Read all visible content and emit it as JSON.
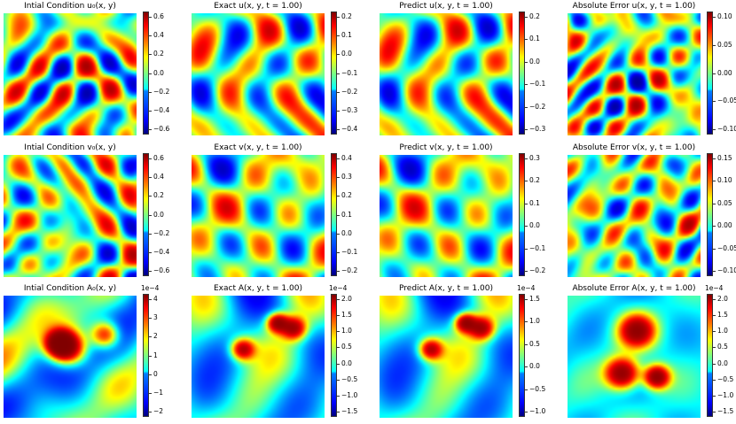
{
  "chart_data": [
    {
      "type": "heatmap",
      "title": "Intial Condition u₀(x, y)",
      "colorbar_ticks": [
        "0.6",
        "0.4",
        "0.2",
        "0.0",
        "−0.2",
        "−0.4",
        "−0.6"
      ],
      "colorbar_exponent": "",
      "vmin": -0.7,
      "vmax": 0.65,
      "seed": 11,
      "style": "init"
    },
    {
      "type": "heatmap",
      "title": "Exact u(x, y, t = 1.00)",
      "colorbar_ticks": [
        "0.2",
        "0.1",
        "0.0",
        "−0.1",
        "−0.2",
        "−0.3",
        "−0.4"
      ],
      "colorbar_exponent": "",
      "vmin": -0.42,
      "vmax": 0.28,
      "seed": 23,
      "style": "smooth"
    },
    {
      "type": "heatmap",
      "title": "Predict u(x, y, t = 1.00)",
      "colorbar_ticks": [
        "0.2",
        "0.1",
        "0.0",
        "−0.1",
        "−0.2",
        "−0.3"
      ],
      "colorbar_exponent": "",
      "vmin": -0.33,
      "vmax": 0.28,
      "seed": 23,
      "style": "smooth"
    },
    {
      "type": "heatmap",
      "title": "Absolute Error u(x, y, t = 1.00)",
      "colorbar_ticks": [
        "0.10",
        "0.05",
        "0.00",
        "−0.05",
        "−0.10"
      ],
      "colorbar_exponent": "",
      "vmin": -0.11,
      "vmax": 0.13,
      "seed": 37,
      "style": "error"
    },
    {
      "type": "heatmap",
      "title": "Intial Condition v₀(x, y)",
      "colorbar_ticks": [
        "0.6",
        "0.4",
        "0.2",
        "0.0",
        "−0.2",
        "−0.4",
        "−0.6"
      ],
      "colorbar_exponent": "",
      "vmin": -0.65,
      "vmax": 0.65,
      "seed": 41,
      "style": "init"
    },
    {
      "type": "heatmap",
      "title": "Exact v(x, y, t = 1.00)",
      "colorbar_ticks": [
        "0.4",
        "0.3",
        "0.2",
        "0.1",
        "0.0",
        "−0.1",
        "−0.2"
      ],
      "colorbar_exponent": "",
      "vmin": -0.28,
      "vmax": 0.42,
      "seed": 53,
      "style": "smooth"
    },
    {
      "type": "heatmap",
      "title": "Predict v(x, y, t = 1.00)",
      "colorbar_ticks": [
        "0.3",
        "0.2",
        "0.1",
        "0.0",
        "−0.1",
        "−0.2"
      ],
      "colorbar_exponent": "",
      "vmin": -0.28,
      "vmax": 0.37,
      "seed": 53,
      "style": "smooth"
    },
    {
      "type": "heatmap",
      "title": "Absolute Error v(x, y, t = 1.00)",
      "colorbar_ticks": [
        "0.15",
        "0.10",
        "0.05",
        "0.00",
        "−0.05",
        "−0.10"
      ],
      "colorbar_exponent": "",
      "vmin": -0.12,
      "vmax": 0.16,
      "seed": 67,
      "style": "error"
    },
    {
      "type": "heatmap",
      "title": "Intial Condition A₀(x, y)",
      "colorbar_ticks": [
        "4",
        "3",
        "2",
        "1",
        "0",
        "−1",
        "−2"
      ],
      "colorbar_exponent": "1e−4",
      "vmin": -2.7,
      "vmax": 4.0,
      "seed": 71,
      "style": "blob"
    },
    {
      "type": "heatmap",
      "title": "Exact A(x, y, t = 1.00)",
      "colorbar_ticks": [
        "2.0",
        "1.5",
        "1.0",
        "0.5",
        "0.0",
        "−0.5",
        "−1.0",
        "−1.5"
      ],
      "colorbar_exponent": "1e−4",
      "vmin": -1.8,
      "vmax": 2.1,
      "seed": 83,
      "style": "blob"
    },
    {
      "type": "heatmap",
      "title": "Predict A(x, y, t = 1.00)",
      "colorbar_ticks": [
        "1.5",
        "1.0",
        "0.5",
        "0.0",
        "−0.5",
        "−1.0"
      ],
      "colorbar_exponent": "1e−4",
      "vmin": -1.3,
      "vmax": 1.85,
      "seed": 83,
      "style": "blob"
    },
    {
      "type": "heatmap",
      "title": "Absolute Error A(x, y, t = 1.00)",
      "colorbar_ticks": [
        "2.0",
        "1.5",
        "1.0",
        "0.5",
        "0.0",
        "−0.5",
        "−1.0",
        "−1.5"
      ],
      "colorbar_exponent": "1e−4",
      "vmin": -1.6,
      "vmax": 2.2,
      "seed": 97,
      "style": "errblob"
    }
  ],
  "colormap": "jet"
}
